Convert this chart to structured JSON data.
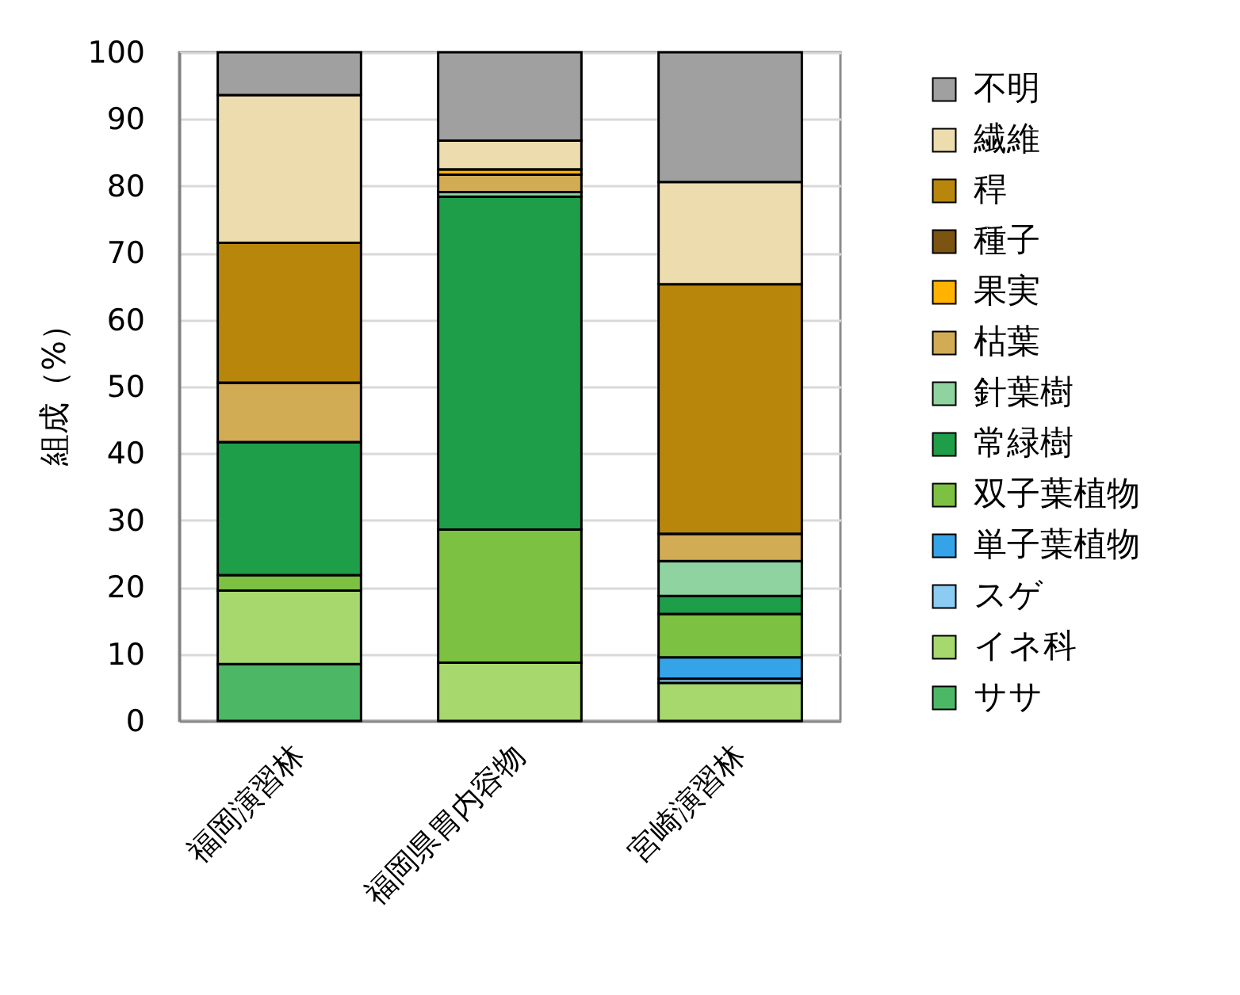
{
  "chart_data": {
    "type": "bar",
    "stacked": true,
    "ylabel": "組成（%）",
    "categories": [
      "福岡演習林",
      "福岡県胃内容物",
      "宮崎演習林"
    ],
    "ylim": [
      0,
      100
    ],
    "yticks": [
      0,
      10,
      20,
      30,
      40,
      50,
      60,
      70,
      80,
      90,
      100
    ],
    "grid": "y",
    "legend": "right",
    "series": [
      {
        "name": "ササ",
        "color": "#4cb866",
        "values": [
          8.5,
          0,
          0
        ]
      },
      {
        "name": "イネ科",
        "color": "#a6d86e",
        "values": [
          11,
          8.7,
          5.7
        ]
      },
      {
        "name": "スゲ",
        "color": "#8ccbf2",
        "values": [
          0,
          0,
          0.6
        ]
      },
      {
        "name": "単子葉植物",
        "color": "#35a3e8",
        "values": [
          0,
          0,
          3.2
        ]
      },
      {
        "name": "双子葉植物",
        "color": "#7cc142",
        "values": [
          2.3,
          19.9,
          6.5
        ]
      },
      {
        "name": "常緑樹",
        "color": "#1e9e48",
        "values": [
          19.9,
          49.8,
          2.7
        ]
      },
      {
        "name": "針葉樹",
        "color": "#8fd4a0",
        "values": [
          0,
          0.7,
          5.2
        ]
      },
      {
        "name": "枯葉",
        "color": "#d2ab55",
        "values": [
          8.9,
          2.6,
          4.1
        ]
      },
      {
        "name": "果実",
        "color": "#ffb300",
        "values": [
          0,
          0.8,
          0
        ]
      },
      {
        "name": "種子",
        "color": "#7b5412",
        "values": [
          0,
          0,
          0
        ]
      },
      {
        "name": "稈",
        "color": "#b8860b",
        "values": [
          20.9,
          0,
          37.3
        ]
      },
      {
        "name": "繊維",
        "color": "#ecdcae",
        "values": [
          22.1,
          4.3,
          15.3
        ]
      },
      {
        "name": "不明",
        "color": "#a0a0a0",
        "values": [
          6.4,
          13.2,
          19.4
        ]
      }
    ]
  }
}
